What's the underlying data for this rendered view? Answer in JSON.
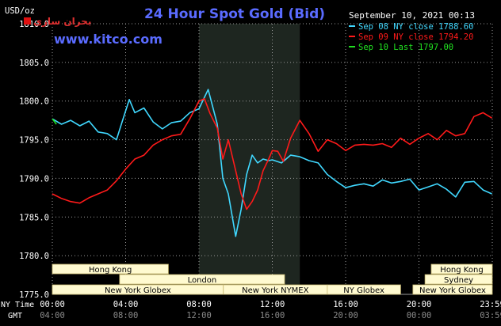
{
  "header": {
    "title": "24 Hour Spot Gold (Bid)",
    "unit": "USD/oz",
    "date": "September 10, 2021 00:13",
    "website": "www.kitco.com",
    "logo_text": "بحران سازی"
  },
  "legend": [
    {
      "label": "Sep 08 NY close 1788.60",
      "color": "#40d8ff"
    },
    {
      "label": "Sep 09 NY close 1794.20",
      "color": "#ff1a1a"
    },
    {
      "label": "Sep 10 Last 1797.00",
      "color": "#20e020"
    }
  ],
  "axes": {
    "y_ticks": [
      "1810.0",
      "1805.0",
      "1800.0",
      "1795.0",
      "1790.0",
      "1785.0",
      "1780.0",
      "1775.0"
    ],
    "x_ticks_ny": [
      "00:00",
      "04:00",
      "08:00",
      "12:00",
      "16:00",
      "20:00",
      "23:59"
    ],
    "x_ticks_gmt": [
      "04:00",
      "08:00",
      "12:00",
      "16:00",
      "20:00",
      "00:00",
      "03:59"
    ],
    "row_label_ny": "NY Time",
    "row_label_gmt": "GMT"
  },
  "sessions": [
    {
      "label": "Hong Kong",
      "row": 0,
      "start": 0,
      "end": 6.33
    },
    {
      "label": "Hong Kong",
      "row": 0,
      "start": 20.67,
      "end": 24
    },
    {
      "label": "London",
      "row": 1,
      "start": 3.67,
      "end": 12.67
    },
    {
      "label": "Sydney",
      "row": 1,
      "start": 20.33,
      "end": 24
    },
    {
      "label": "New York Globex",
      "row": 2,
      "start": 0,
      "end": 9.33
    },
    {
      "label": "New York NYMEX",
      "row": 2,
      "start": 9.33,
      "end": 15
    },
    {
      "label": "NY Globex",
      "row": 2,
      "start": 15,
      "end": 19
    },
    {
      "label": "New York Globex",
      "row": 2,
      "start": 19.67,
      "end": 24
    }
  ],
  "colors": {
    "background": "#000000",
    "grid": "#9a9a9a",
    "text": "#ffffff",
    "title": "#5a6bff",
    "website": "#5a6bff",
    "highlight": "#1e2620",
    "session_fill": "#fffad0",
    "session_text": "#000000"
  },
  "chart_data": {
    "type": "line",
    "title": "24 Hour Spot Gold (Bid)",
    "ylabel": "USD/oz",
    "xlabel": "NY Time",
    "xlim": [
      0,
      24
    ],
    "ylim": [
      1775,
      1810
    ],
    "grid": true,
    "legend_position": "top-right",
    "highlight_range": [
      8.0,
      13.5
    ],
    "series": [
      {
        "name": "Sep 08 NY close 1788.60",
        "color": "#40d8ff",
        "x": [
          0,
          0.5,
          1,
          1.5,
          2,
          2.5,
          3,
          3.5,
          3.9,
          4.2,
          4.5,
          5,
          5.5,
          6,
          6.5,
          7,
          7.5,
          8,
          8.5,
          9,
          9.3,
          9.6,
          10,
          10.3,
          10.6,
          10.9,
          11.2,
          11.5,
          11.8,
          12,
          12.5,
          13,
          13.5,
          14,
          14.5,
          15,
          15.5,
          16,
          16.5,
          17,
          17.5,
          18,
          18.5,
          19,
          19.5,
          20,
          20.5,
          21,
          21.5,
          22,
          22.5,
          23,
          23.5,
          23.98
        ],
        "y": [
          1797.7,
          1797.0,
          1797.5,
          1796.8,
          1797.4,
          1796.0,
          1795.8,
          1795.0,
          1798.0,
          1800.2,
          1798.5,
          1799.1,
          1797.3,
          1796.4,
          1797.2,
          1797.4,
          1798.5,
          1799.0,
          1801.5,
          1797.0,
          1790.0,
          1788.0,
          1782.5,
          1786.0,
          1790.5,
          1793.0,
          1792.0,
          1792.5,
          1792.3,
          1792.4,
          1792.0,
          1793.0,
          1792.8,
          1792.3,
          1792.0,
          1790.5,
          1789.6,
          1788.8,
          1789.1,
          1789.3,
          1789.0,
          1789.8,
          1789.4,
          1789.6,
          1789.9,
          1788.5,
          1788.9,
          1789.3,
          1788.6,
          1787.6,
          1789.5,
          1789.6,
          1788.5,
          1788.0
        ]
      },
      {
        "name": "Sep 09 NY close 1794.20",
        "color": "#ff1a1a",
        "x": [
          0,
          0.5,
          1,
          1.5,
          2,
          2.5,
          3,
          3.5,
          4,
          4.5,
          5,
          5.5,
          6,
          6.5,
          7,
          7.5,
          8,
          8.3,
          8.6,
          9,
          9.3,
          9.6,
          10,
          10.3,
          10.6,
          10.9,
          11.2,
          11.5,
          11.8,
          12,
          12.3,
          12.6,
          13,
          13.5,
          14,
          14.5,
          15,
          15.5,
          16,
          16.5,
          17,
          17.5,
          18,
          18.5,
          19,
          19.5,
          20,
          20.5,
          21,
          21.5,
          22,
          22.5,
          23,
          23.5,
          23.98
        ],
        "y": [
          1788.0,
          1787.4,
          1787.0,
          1786.8,
          1787.5,
          1788.0,
          1788.5,
          1789.7,
          1791.2,
          1792.5,
          1793.0,
          1794.3,
          1795.0,
          1795.5,
          1795.7,
          1797.7,
          1800.0,
          1800.3,
          1798.4,
          1796.5,
          1792.5,
          1795.0,
          1791.0,
          1788.0,
          1786.0,
          1787.0,
          1788.5,
          1791.0,
          1792.5,
          1793.6,
          1793.5,
          1792.2,
          1795.2,
          1797.5,
          1795.8,
          1793.5,
          1795.0,
          1794.5,
          1793.6,
          1794.3,
          1794.4,
          1794.3,
          1794.5,
          1794.0,
          1795.2,
          1794.4,
          1795.2,
          1795.8,
          1795.0,
          1796.2,
          1795.5,
          1795.8,
          1798.0,
          1798.5,
          1797.8
        ]
      },
      {
        "name": "Sep 10 Last 1797.00",
        "color": "#20e020",
        "x": [
          0,
          0.1,
          0.22
        ],
        "y": [
          1797.7,
          1797.4,
          1797.0
        ]
      }
    ]
  }
}
